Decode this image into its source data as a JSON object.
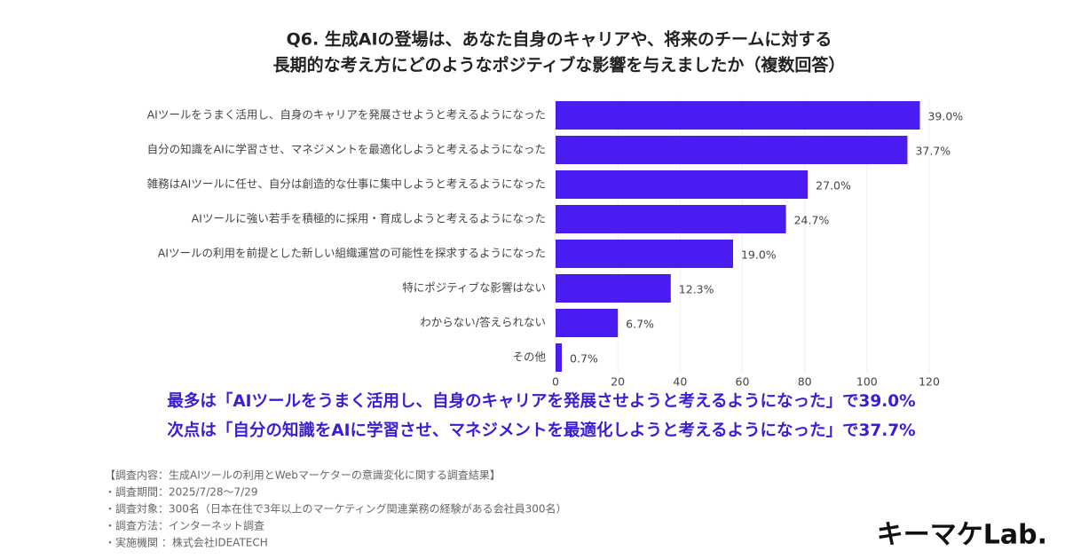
{
  "chart_data": {
    "type": "bar",
    "orientation": "horizontal",
    "title_lines": [
      "Q6. 生成AIの登場は、あなた自身のキャリアや、将来のチームに対する",
      "長期的な考え方にどのようなポジティブな影響を与えましたか（複数回答）"
    ],
    "categories": [
      "AIツールをうまく活用し、自身のキャリアを発展させようと考えるようになった",
      "自分の知識をAIに学習させ、マネジメントを最適化しようと考えるようになった",
      "雑務はAIツールに任せ、自分は創造的な仕事に集中しようと考えるようになった",
      "AIツールに強い若手を積極的に採用・育成しようと考えるようになった",
      "AIツールの利用を前提とした新しい組織運営の可能性を探求するようになった",
      "特にポジティブな影響はない",
      "わからない/答えられない",
      "その他"
    ],
    "values": [
      117,
      113,
      81,
      74,
      57,
      37,
      20,
      2
    ],
    "value_labels": [
      "39.0%",
      "37.7%",
      "27.0%",
      "24.7%",
      "19.0%",
      "12.3%",
      "6.7%",
      "0.7%"
    ],
    "color": "#4b1cf2",
    "xlim": [
      0,
      120
    ],
    "xticks": [
      0,
      20,
      40,
      60,
      80,
      100,
      120
    ],
    "grid": true
  },
  "highlights": [
    "最多は「AIツールをうまく活用し、自身のキャリアを発展させようと考えるようになった」で39.0%",
    "次点は「自分の知識をAIに学習させ、マネジメントを最適化しようと考えるようになった」で37.7%"
  ],
  "notes": [
    "【調査内容：生成AIツールの利用とWebマーケターの意識変化に関する調査結果】",
    "・調査期間：2025/7/28〜7/29",
    "・調査対象：300名（日本在住で3年以上のマーケティング関連業務の経験がある会社員300名）",
    "・調査方法：インターネット調査",
    "・実施機関 ：株式会社IDEATECH"
  ],
  "logo": "キーマケLab."
}
